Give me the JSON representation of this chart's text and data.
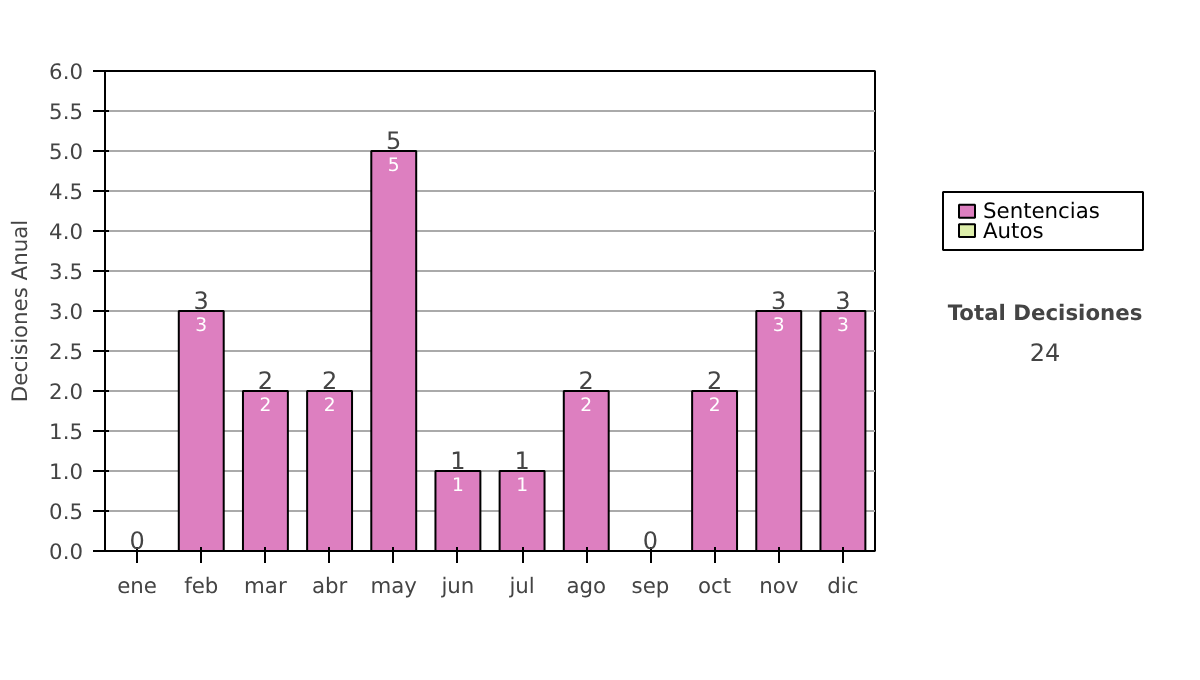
{
  "chart_data": {
    "type": "bar",
    "stacked": true,
    "ylabel": "Decisiones Anual",
    "categories": [
      "ene",
      "feb",
      "mar",
      "abr",
      "may",
      "jun",
      "jul",
      "ago",
      "sep",
      "oct",
      "nov",
      "dic"
    ],
    "series": [
      {
        "name": "Sentencias",
        "color": "#dd7fc0",
        "values": [
          0,
          3,
          2,
          2,
          5,
          1,
          1,
          2,
          0,
          2,
          3,
          3
        ],
        "value_labels": [
          null,
          "3",
          "2",
          "2",
          "5",
          "1",
          "1",
          "2",
          null,
          "2",
          "3",
          "3"
        ]
      },
      {
        "name": "Autos",
        "color": "#ddeeaa",
        "values": [
          0,
          0,
          0,
          0,
          0,
          0,
          0,
          0,
          0,
          0,
          0,
          0
        ]
      }
    ],
    "totals": [
      "0",
      "3",
      "2",
      "2",
      "5",
      "1",
      "1",
      "2",
      "0",
      "2",
      "3",
      "3"
    ],
    "ylim": [
      0,
      6
    ],
    "yticks": [
      {
        "value": 0,
        "label": "0.0"
      },
      {
        "value": 0.5,
        "label": "0.5"
      },
      {
        "value": 1,
        "label": "1.0"
      },
      {
        "value": 1.5,
        "label": "1.5"
      },
      {
        "value": 2,
        "label": "2.0"
      },
      {
        "value": 2.5,
        "label": "2.5"
      },
      {
        "value": 3,
        "label": "3.0"
      },
      {
        "value": 3.5,
        "label": "3.5"
      },
      {
        "value": 4,
        "label": "4.0"
      },
      {
        "value": 4.5,
        "label": "4.5"
      },
      {
        "value": 5,
        "label": "5.0"
      },
      {
        "value": 5.5,
        "label": "5.5"
      },
      {
        "value": 6,
        "label": "6.0"
      }
    ],
    "grid": "y",
    "legend": "right",
    "annotations": [
      "Total Decisiones",
      "24"
    ]
  }
}
